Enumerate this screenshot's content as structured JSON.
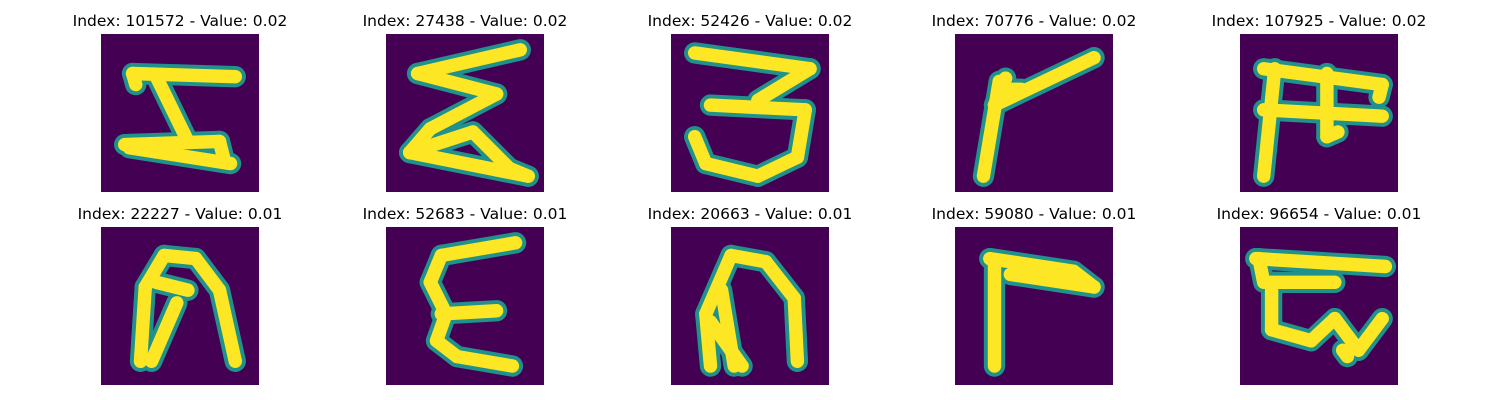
{
  "colors": {
    "background": "#440154",
    "stroke": "#fde725",
    "edge": "#21918c"
  },
  "panels": [
    {
      "title": "Index: 101572 - Value: 0.02",
      "glyph": "Z-like character with horizontal bars",
      "shape": [
        [
          [
            0.2,
            0.25
          ],
          [
            0.85,
            0.27
          ]
        ],
        [
          [
            0.2,
            0.25
          ],
          [
            0.22,
            0.32
          ]
        ],
        [
          [
            0.35,
            0.27
          ],
          [
            0.55,
            0.68
          ]
        ],
        [
          [
            0.15,
            0.7
          ],
          [
            0.75,
            0.68
          ]
        ],
        [
          [
            0.75,
            0.68
          ],
          [
            0.78,
            0.8
          ]
        ],
        [
          [
            0.18,
            0.72
          ],
          [
            0.82,
            0.82
          ]
        ]
      ]
    },
    {
      "title": "Index: 27438 - Value: 0.02",
      "glyph": "Sigma-like zigzag character",
      "shape": [
        [
          [
            0.85,
            0.1
          ],
          [
            0.2,
            0.25
          ]
        ],
        [
          [
            0.2,
            0.25
          ],
          [
            0.7,
            0.38
          ]
        ],
        [
          [
            0.7,
            0.38
          ],
          [
            0.28,
            0.6
          ]
        ],
        [
          [
            0.28,
            0.6
          ],
          [
            0.15,
            0.75
          ]
        ],
        [
          [
            0.15,
            0.75
          ],
          [
            0.55,
            0.62
          ]
        ],
        [
          [
            0.55,
            0.62
          ],
          [
            0.78,
            0.85
          ]
        ],
        [
          [
            0.78,
            0.85
          ],
          [
            0.9,
            0.9
          ]
        ],
        [
          [
            0.15,
            0.75
          ],
          [
            0.9,
            0.9
          ]
        ]
      ]
    },
    {
      "title": "Index: 52426 - Value: 0.02",
      "glyph": "Reversed epsilon / 3-like character",
      "shape": [
        [
          [
            0.15,
            0.12
          ],
          [
            0.88,
            0.22
          ]
        ],
        [
          [
            0.88,
            0.22
          ],
          [
            0.55,
            0.42
          ]
        ],
        [
          [
            0.25,
            0.45
          ],
          [
            0.85,
            0.48
          ]
        ],
        [
          [
            0.85,
            0.48
          ],
          [
            0.8,
            0.78
          ]
        ],
        [
          [
            0.8,
            0.78
          ],
          [
            0.55,
            0.9
          ]
        ],
        [
          [
            0.55,
            0.9
          ],
          [
            0.22,
            0.82
          ]
        ],
        [
          [
            0.22,
            0.82
          ],
          [
            0.15,
            0.65
          ]
        ]
      ]
    },
    {
      "title": "Index: 70776 - Value: 0.02",
      "glyph": "Bent stroke with loop at corner",
      "shape": [
        [
          [
            0.88,
            0.15
          ],
          [
            0.25,
            0.45
          ]
        ],
        [
          [
            0.25,
            0.45
          ],
          [
            0.32,
            0.28
          ]
        ],
        [
          [
            0.32,
            0.28
          ],
          [
            0.28,
            0.4
          ]
        ],
        [
          [
            0.28,
            0.3
          ],
          [
            0.18,
            0.9
          ]
        ],
        [
          [
            0.3,
            0.35
          ],
          [
            0.42,
            0.35
          ]
        ]
      ]
    },
    {
      "title": "Index: 107925 - Value: 0.02",
      "glyph": "Character with top bar and two legs",
      "shape": [
        [
          [
            0.15,
            0.22
          ],
          [
            0.9,
            0.32
          ]
        ],
        [
          [
            0.9,
            0.32
          ],
          [
            0.88,
            0.4
          ]
        ],
        [
          [
            0.15,
            0.48
          ],
          [
            0.9,
            0.52
          ]
        ],
        [
          [
            0.22,
            0.22
          ],
          [
            0.15,
            0.9
          ]
        ],
        [
          [
            0.55,
            0.25
          ],
          [
            0.55,
            0.65
          ]
        ],
        [
          [
            0.55,
            0.65
          ],
          [
            0.62,
            0.62
          ]
        ]
      ]
    },
    {
      "title": "Index: 22227 - Value: 0.01",
      "glyph": "Arch-shaped filled character",
      "shape": [
        [
          [
            0.25,
            0.85
          ],
          [
            0.28,
            0.38
          ]
        ],
        [
          [
            0.28,
            0.38
          ],
          [
            0.4,
            0.18
          ]
        ],
        [
          [
            0.4,
            0.18
          ],
          [
            0.6,
            0.2
          ]
        ],
        [
          [
            0.6,
            0.2
          ],
          [
            0.75,
            0.4
          ]
        ],
        [
          [
            0.75,
            0.4
          ],
          [
            0.85,
            0.85
          ]
        ],
        [
          [
            0.35,
            0.35
          ],
          [
            0.55,
            0.4
          ]
        ],
        [
          [
            0.48,
            0.48
          ],
          [
            0.32,
            0.85
          ]
        ]
      ]
    },
    {
      "title": "Index: 52683 - Value: 0.01",
      "glyph": "Epsilon-like character",
      "shape": [
        [
          [
            0.82,
            0.1
          ],
          [
            0.35,
            0.18
          ]
        ],
        [
          [
            0.35,
            0.18
          ],
          [
            0.28,
            0.35
          ]
        ],
        [
          [
            0.28,
            0.35
          ],
          [
            0.38,
            0.55
          ]
        ],
        [
          [
            0.35,
            0.55
          ],
          [
            0.7,
            0.53
          ]
        ],
        [
          [
            0.38,
            0.55
          ],
          [
            0.32,
            0.72
          ]
        ],
        [
          [
            0.32,
            0.72
          ],
          [
            0.45,
            0.82
          ]
        ],
        [
          [
            0.45,
            0.82
          ],
          [
            0.8,
            0.88
          ]
        ]
      ]
    },
    {
      "title": "Index: 20663 - Value: 0.01",
      "glyph": "Arch-shaped character",
      "shape": [
        [
          [
            0.25,
            0.88
          ],
          [
            0.22,
            0.55
          ]
        ],
        [
          [
            0.22,
            0.55
          ],
          [
            0.38,
            0.18
          ]
        ],
        [
          [
            0.38,
            0.18
          ],
          [
            0.6,
            0.22
          ]
        ],
        [
          [
            0.6,
            0.22
          ],
          [
            0.78,
            0.45
          ]
        ],
        [
          [
            0.78,
            0.45
          ],
          [
            0.8,
            0.85
          ]
        ],
        [
          [
            0.25,
            0.6
          ],
          [
            0.45,
            0.88
          ]
        ],
        [
          [
            0.32,
            0.4
          ],
          [
            0.4,
            0.88
          ]
        ]
      ]
    },
    {
      "title": "Index: 59080 - Value: 0.01",
      "glyph": "Gamma-like bent character",
      "shape": [
        [
          [
            0.22,
            0.2
          ],
          [
            0.75,
            0.28
          ]
        ],
        [
          [
            0.75,
            0.28
          ],
          [
            0.88,
            0.38
          ]
        ],
        [
          [
            0.88,
            0.38
          ],
          [
            0.35,
            0.3
          ]
        ],
        [
          [
            0.25,
            0.22
          ],
          [
            0.25,
            0.88
          ]
        ]
      ]
    },
    {
      "title": "Index: 96654 - Value: 0.01",
      "glyph": "Character with top bar and looped lower part",
      "shape": [
        [
          [
            0.1,
            0.2
          ],
          [
            0.92,
            0.25
          ]
        ],
        [
          [
            0.12,
            0.2
          ],
          [
            0.15,
            0.35
          ]
        ],
        [
          [
            0.18,
            0.35
          ],
          [
            0.6,
            0.35
          ]
        ],
        [
          [
            0.2,
            0.4
          ],
          [
            0.2,
            0.65
          ]
        ],
        [
          [
            0.2,
            0.65
          ],
          [
            0.45,
            0.72
          ]
        ],
        [
          [
            0.45,
            0.72
          ],
          [
            0.6,
            0.58
          ]
        ],
        [
          [
            0.6,
            0.58
          ],
          [
            0.75,
            0.78
          ]
        ],
        [
          [
            0.75,
            0.78
          ],
          [
            0.9,
            0.58
          ]
        ],
        [
          [
            0.65,
            0.78
          ],
          [
            0.68,
            0.82
          ]
        ]
      ]
    }
  ]
}
